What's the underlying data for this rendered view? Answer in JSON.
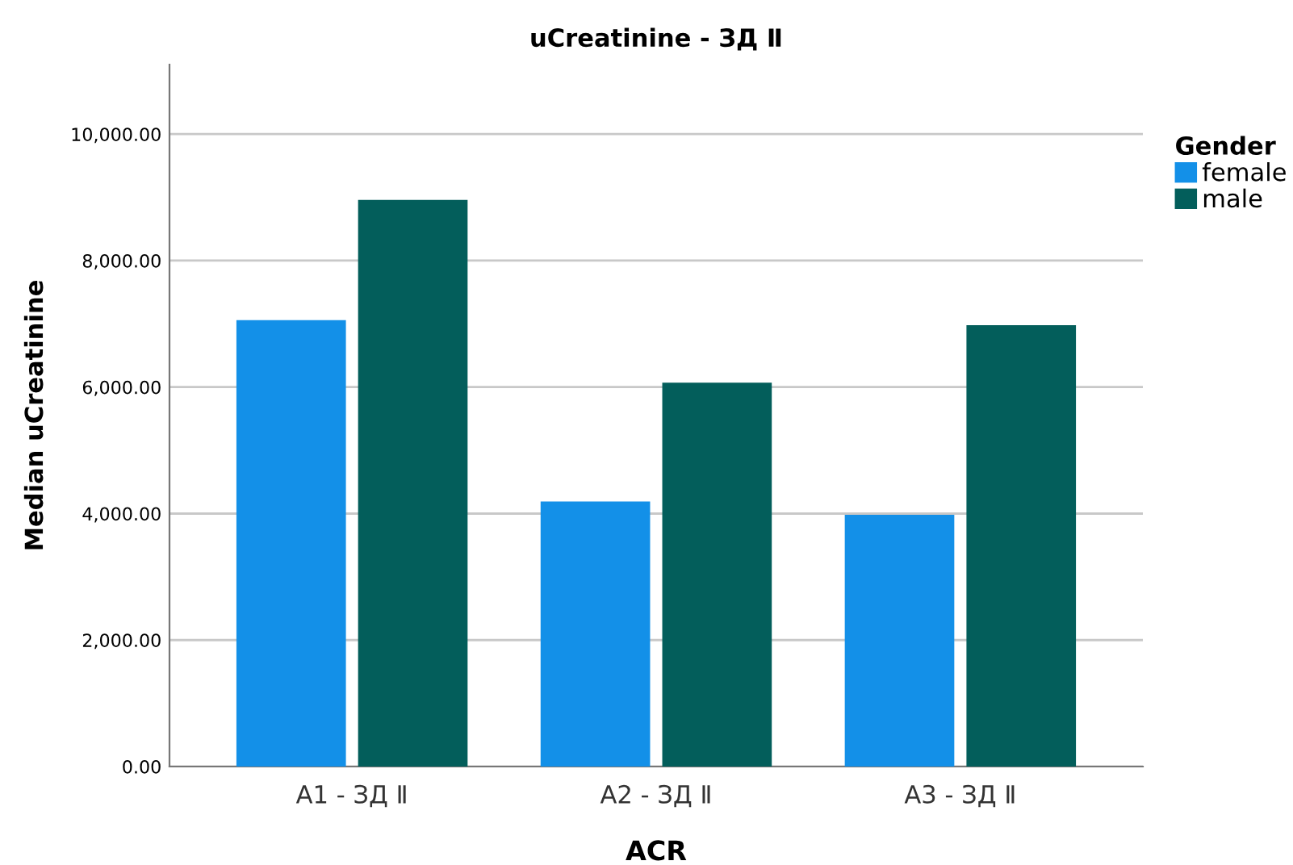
{
  "chart_data": {
    "type": "bar",
    "title": "uCreatinine - ЗД Ⅱ",
    "xlabel": "ACR",
    "ylabel": "Median uCreatinine",
    "categories": [
      "A1 - ЗД Ⅱ",
      "A2 - ЗД Ⅱ",
      "A3 - ЗД Ⅱ"
    ],
    "series": [
      {
        "name": "female",
        "color": "#1390e8",
        "values": [
          7060,
          4190,
          3980
        ]
      },
      {
        "name": "male",
        "color": "#035e5b",
        "values": [
          8960,
          6070,
          6980
        ]
      }
    ],
    "legend_title": "Gender",
    "legend": "right",
    "ylim": [
      0,
      11100
    ],
    "yticks": [
      {
        "value": 0,
        "label": "0.00"
      },
      {
        "value": 2000,
        "label": "2,000.00"
      },
      {
        "value": 4000,
        "label": "4,000.00"
      },
      {
        "value": 6000,
        "label": "6,000.00"
      },
      {
        "value": 8000,
        "label": "8,000.00"
      },
      {
        "value": 10000,
        "label": "10,000.00"
      }
    ],
    "grid": "y"
  }
}
